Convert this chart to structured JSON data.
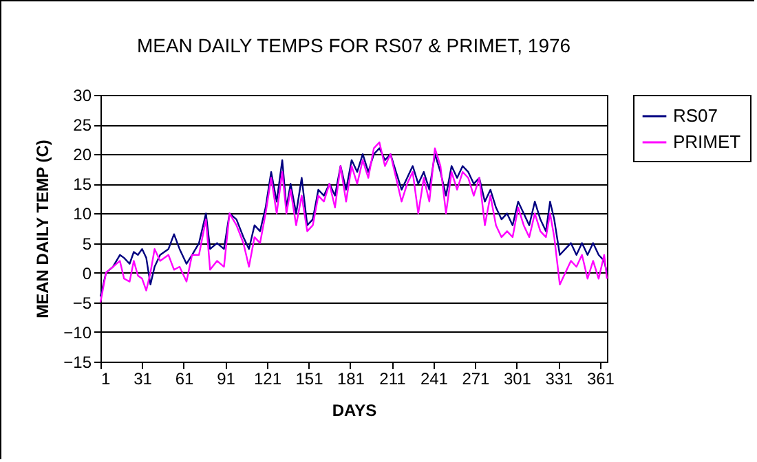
{
  "chart_data": {
    "type": "line",
    "title": "MEAN DAILY TEMPS FOR RS07 & PRIMET, 1976",
    "xlabel": "DAYS",
    "ylabel": "MEAN DAILY TEMP (C)",
    "x": [
      1,
      5,
      10,
      15,
      18,
      22,
      25,
      28,
      31,
      34,
      37,
      40,
      44,
      50,
      54,
      58,
      63,
      67,
      72,
      77,
      80,
      85,
      90,
      94,
      99,
      104,
      108,
      112,
      116,
      120,
      124,
      128,
      132,
      135,
      138,
      142,
      146,
      150,
      154,
      158,
      162,
      166,
      170,
      174,
      178,
      182,
      186,
      190,
      194,
      198,
      202,
      206,
      210,
      214,
      218,
      222,
      226,
      230,
      234,
      238,
      242,
      246,
      250,
      254,
      258,
      262,
      266,
      270,
      274,
      278,
      282,
      286,
      290,
      294,
      298,
      302,
      306,
      310,
      314,
      318,
      322,
      325,
      328,
      332,
      336,
      340,
      344,
      348,
      352,
      356,
      360,
      364,
      366
    ],
    "series": [
      {
        "name": "RS07",
        "color": "#000080",
        "values": [
          -4,
          0,
          1,
          3,
          2.5,
          1.5,
          3.5,
          3,
          4,
          2.5,
          -2,
          1,
          3,
          4,
          6.5,
          4,
          1.5,
          3,
          5,
          10,
          4,
          5,
          4,
          10,
          9,
          6,
          4,
          8,
          7,
          11,
          17,
          12,
          19,
          11,
          15,
          10,
          16,
          8,
          9,
          14,
          13,
          15,
          13,
          18,
          14,
          19,
          17,
          20,
          17,
          20,
          21,
          19,
          20,
          17,
          14,
          16,
          18,
          15,
          17,
          14,
          20,
          17,
          13,
          18,
          16,
          18,
          17,
          15,
          16,
          12,
          14,
          11,
          9,
          10,
          8,
          12,
          10,
          8,
          12,
          9,
          7,
          12,
          9,
          3,
          4,
          5,
          3,
          5,
          3,
          5,
          3,
          2,
          0
        ]
      },
      {
        "name": "PRIMET",
        "color": "#ff00ff",
        "values": [
          -5,
          0,
          1,
          2,
          -1,
          -1.5,
          2,
          -0.5,
          -1,
          -3,
          0,
          4,
          2,
          3,
          0.5,
          1,
          -1.5,
          3,
          3,
          9,
          0.5,
          2,
          1,
          10,
          8,
          5,
          1,
          6,
          5,
          10,
          16,
          10,
          17,
          10,
          14,
          8,
          13,
          7,
          8,
          13,
          12,
          15,
          11,
          18,
          12,
          18,
          15,
          19,
          16,
          21,
          22,
          18,
          20,
          16,
          12,
          15,
          17,
          10,
          16,
          12,
          21,
          18,
          10,
          17,
          14,
          17,
          16,
          13,
          16,
          8,
          13,
          8,
          6,
          7,
          6,
          11,
          8,
          6,
          10,
          7,
          6,
          10,
          6,
          -2,
          0,
          2,
          1,
          3,
          -1,
          2,
          -1,
          3,
          -1
        ]
      }
    ],
    "xlim": [
      1,
      366
    ],
    "xticks": [
      1,
      31,
      61,
      91,
      121,
      151,
      181,
      211,
      241,
      271,
      301,
      331,
      361
    ],
    "ylim": [
      -15,
      30
    ],
    "yticks": [
      -15,
      -10,
      -5,
      0,
      5,
      10,
      15,
      20,
      25,
      30
    ],
    "grid": "y",
    "legend": "right",
    "marker": "none",
    "line_style": "solid"
  }
}
